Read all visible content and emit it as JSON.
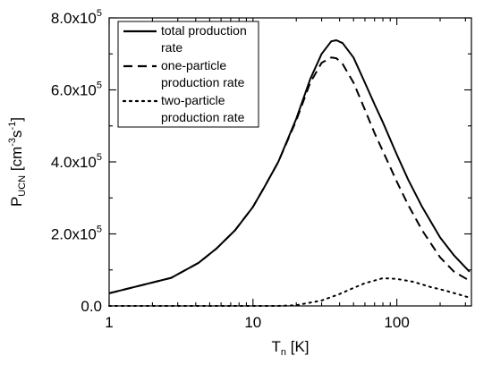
{
  "chart_data": {
    "type": "line",
    "x_scale": "log",
    "xlim": [
      1,
      330
    ],
    "ylim": [
      0,
      800000
    ],
    "xlabel": {
      "main": "T",
      "sub": "n",
      "unit": " [K]"
    },
    "ylabel": {
      "main": "P",
      "sub": "UCN",
      "unit_open": " [cm",
      "exp1": "-3",
      "mid": "s",
      "exp2": "-1",
      "unit_close": "]"
    },
    "x_ticks": [
      {
        "value": 1,
        "label": "1"
      },
      {
        "value": 10,
        "label": "10"
      },
      {
        "value": 100,
        "label": "100"
      }
    ],
    "y_ticks": [
      {
        "value": 0,
        "label": "0.0"
      },
      {
        "value": 200000,
        "label": "2.0x10",
        "exp": "5"
      },
      {
        "value": 400000,
        "label": "4.0x10",
        "exp": "5"
      },
      {
        "value": 600000,
        "label": "6.0x10",
        "exp": "5"
      },
      {
        "value": 800000,
        "label": "8.0x10",
        "exp": "5"
      }
    ],
    "legend_position": "top-left",
    "series": [
      {
        "name": "total production rate",
        "legend_lines": [
          "total production",
          "rate"
        ],
        "style": "solid",
        "x": [
          1,
          2.7,
          4.2,
          5.6,
          7.5,
          10,
          12,
          15,
          20,
          25,
          30,
          35,
          38,
          42,
          50,
          60,
          70,
          80,
          100,
          120,
          150,
          200,
          250,
          320
        ],
        "y": [
          35000,
          78000,
          120000,
          160000,
          210000,
          275000,
          330000,
          400000,
          520000,
          630000,
          700000,
          735000,
          738000,
          730000,
          690000,
          620000,
          560000,
          510000,
          420000,
          350000,
          275000,
          190000,
          140000,
          95000
        ]
      },
      {
        "name": "one-particle production rate",
        "legend_lines": [
          "one-particle",
          "production rate"
        ],
        "style": "dashed",
        "x": [
          1,
          2.7,
          4.2,
          5.6,
          7.5,
          10,
          12,
          15,
          20,
          25,
          30,
          35,
          38,
          42,
          50,
          60,
          70,
          80,
          100,
          120,
          150,
          200,
          250,
          320
        ],
        "y": [
          35000,
          78000,
          120000,
          160000,
          210000,
          275000,
          330000,
          400000,
          515000,
          620000,
          675000,
          690000,
          688000,
          672000,
          620000,
          545000,
          480000,
          430000,
          345000,
          280000,
          210000,
          135000,
          95000,
          70000
        ]
      },
      {
        "name": "two-particle production rate",
        "legend_lines": [
          "two-particle",
          "production rate"
        ],
        "style": "dotted",
        "x": [
          1,
          10,
          15,
          20,
          30,
          40,
          50,
          60,
          80,
          100,
          130,
          170,
          220,
          320
        ],
        "y": [
          0,
          0,
          0,
          2000,
          15000,
          33000,
          50000,
          63000,
          77000,
          75000,
          67000,
          53000,
          42000,
          23000
        ]
      }
    ]
  }
}
